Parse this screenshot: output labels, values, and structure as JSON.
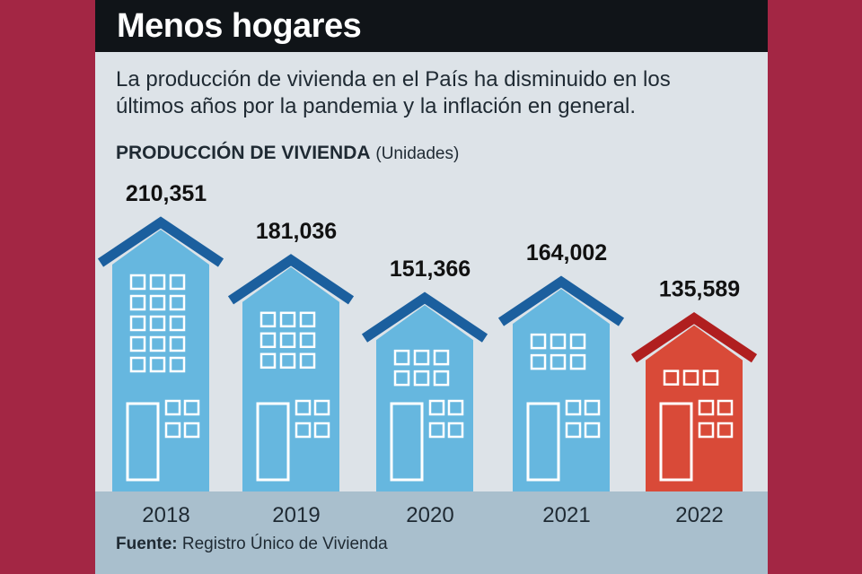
{
  "header": {
    "title": "Menos hogares",
    "subtitle": "La producción de vivienda en el País ha disminuido en los últimos años por la pandemia y la inflación en general."
  },
  "chart_label": {
    "main": "PRODUCCIÓN DE VIVIENDA",
    "units": "(Unidades)"
  },
  "source": {
    "prefix": "Fuente:",
    "text": "Registro Único de Vivienda"
  },
  "chart_data": {
    "type": "bar",
    "title": "PRODUCCIÓN DE VIVIENDA",
    "ylabel": "(Unidades)",
    "categories": [
      "2018",
      "2019",
      "2020",
      "2021",
      "2022"
    ],
    "values": [
      210351,
      181036,
      151366,
      164002,
      135589
    ],
    "value_labels": [
      "210,351",
      "181,036",
      "151,366",
      "164,002",
      "135,589"
    ],
    "highlight_index": 4
  },
  "colors": {
    "background": "#a32644",
    "panel": "#dde3e8",
    "title_bar": "#101418",
    "house_blue": "#66b7df",
    "roof_blue": "#1b5f9e",
    "house_red": "#d94a38",
    "roof_red": "#b01f1f",
    "band": "#a9bfcd",
    "text": "#1f2a33"
  }
}
